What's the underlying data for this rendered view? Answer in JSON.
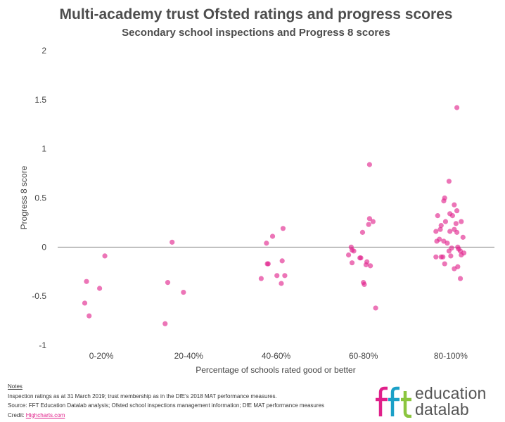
{
  "chart_data": {
    "type": "scatter",
    "title": "Multi-academy trust Ofsted ratings and progress scores",
    "subtitle": "Secondary school inspections and Progress 8 scores",
    "xlabel": "Percentage of schools rated good or better",
    "ylabel": "Progress 8 score",
    "categories": [
      "0-20%",
      "20-40%",
      "40-60%",
      "60-80%",
      "80-100%"
    ],
    "ylim": [
      -1,
      2
    ],
    "yticks": [
      "2",
      "1.5",
      "1",
      "0.5",
      "0",
      "-0.5",
      "-1"
    ],
    "ytick_values": [
      2,
      1.5,
      1,
      0.5,
      0,
      -0.5,
      -1
    ],
    "grid": false,
    "point_color": "#e0208a",
    "points": [
      {
        "category": 0,
        "x": 0.31,
        "y": -0.57
      },
      {
        "category": 0,
        "x": 0.33,
        "y": -0.35
      },
      {
        "category": 0,
        "x": 0.36,
        "y": -0.7
      },
      {
        "category": 0,
        "x": 0.48,
        "y": -0.42
      },
      {
        "category": 0,
        "x": 0.54,
        "y": -0.09
      },
      {
        "category": 1,
        "x": 1.23,
        "y": -0.78
      },
      {
        "category": 1,
        "x": 1.26,
        "y": -0.36
      },
      {
        "category": 1,
        "x": 1.31,
        "y": 0.05
      },
      {
        "category": 1,
        "x": 1.44,
        "y": -0.46
      },
      {
        "category": 2,
        "x": 2.33,
        "y": -0.32
      },
      {
        "category": 2,
        "x": 2.39,
        "y": 0.04
      },
      {
        "category": 2,
        "x": 2.4,
        "y": -0.17
      },
      {
        "category": 2,
        "x": 2.41,
        "y": -0.17
      },
      {
        "category": 2,
        "x": 2.46,
        "y": 0.11
      },
      {
        "category": 2,
        "x": 2.51,
        "y": -0.29
      },
      {
        "category": 2,
        "x": 2.56,
        "y": -0.37
      },
      {
        "category": 2,
        "x": 2.57,
        "y": -0.14
      },
      {
        "category": 2,
        "x": 2.58,
        "y": 0.19
      },
      {
        "category": 2,
        "x": 2.6,
        "y": -0.29
      },
      {
        "category": 3,
        "x": 3.33,
        "y": -0.08
      },
      {
        "category": 3,
        "x": 3.36,
        "y": 0.0
      },
      {
        "category": 3,
        "x": 3.37,
        "y": -0.03
      },
      {
        "category": 3,
        "x": 3.37,
        "y": -0.16
      },
      {
        "category": 3,
        "x": 3.39,
        "y": -0.04
      },
      {
        "category": 3,
        "x": 3.46,
        "y": -0.11
      },
      {
        "category": 3,
        "x": 3.47,
        "y": -0.11
      },
      {
        "category": 3,
        "x": 3.49,
        "y": 0.15
      },
      {
        "category": 3,
        "x": 3.5,
        "y": -0.36
      },
      {
        "category": 3,
        "x": 3.51,
        "y": -0.38
      },
      {
        "category": 3,
        "x": 3.53,
        "y": -0.18
      },
      {
        "category": 3,
        "x": 3.54,
        "y": -0.15
      },
      {
        "category": 3,
        "x": 3.56,
        "y": 0.23
      },
      {
        "category": 3,
        "x": 3.57,
        "y": 0.29
      },
      {
        "category": 3,
        "x": 3.57,
        "y": 0.84
      },
      {
        "category": 3,
        "x": 3.58,
        "y": -0.19
      },
      {
        "category": 3,
        "x": 3.61,
        "y": 0.26
      },
      {
        "category": 3,
        "x": 3.64,
        "y": -0.62
      },
      {
        "category": 4,
        "x": 4.33,
        "y": -0.1
      },
      {
        "category": 4,
        "x": 4.33,
        "y": 0.16
      },
      {
        "category": 4,
        "x": 4.34,
        "y": 0.06
      },
      {
        "category": 4,
        "x": 4.35,
        "y": 0.32
      },
      {
        "category": 4,
        "x": 4.37,
        "y": 0.08
      },
      {
        "category": 4,
        "x": 4.38,
        "y": 0.18
      },
      {
        "category": 4,
        "x": 4.39,
        "y": 0.22
      },
      {
        "category": 4,
        "x": 4.39,
        "y": -0.1
      },
      {
        "category": 4,
        "x": 4.41,
        "y": -0.1
      },
      {
        "category": 4,
        "x": 4.42,
        "y": 0.06
      },
      {
        "category": 4,
        "x": 4.42,
        "y": 0.47
      },
      {
        "category": 4,
        "x": 4.43,
        "y": 0.5
      },
      {
        "category": 4,
        "x": 4.43,
        "y": -0.17
      },
      {
        "category": 4,
        "x": 4.44,
        "y": 0.26
      },
      {
        "category": 4,
        "x": 4.46,
        "y": 0.04
      },
      {
        "category": 4,
        "x": 4.48,
        "y": 0.67
      },
      {
        "category": 4,
        "x": 4.48,
        "y": -0.04
      },
      {
        "category": 4,
        "x": 4.49,
        "y": 0.16
      },
      {
        "category": 4,
        "x": 4.49,
        "y": 0.34
      },
      {
        "category": 4,
        "x": 4.5,
        "y": -0.09
      },
      {
        "category": 4,
        "x": 4.51,
        "y": -0.01
      },
      {
        "category": 4,
        "x": 4.52,
        "y": 0.32
      },
      {
        "category": 4,
        "x": 4.54,
        "y": 0.43
      },
      {
        "category": 4,
        "x": 4.54,
        "y": 0.18
      },
      {
        "category": 4,
        "x": 4.54,
        "y": -0.22
      },
      {
        "category": 4,
        "x": 4.56,
        "y": 0.24
      },
      {
        "category": 4,
        "x": 4.57,
        "y": 0.37
      },
      {
        "category": 4,
        "x": 4.57,
        "y": 1.42
      },
      {
        "category": 4,
        "x": 4.57,
        "y": 0.15
      },
      {
        "category": 4,
        "x": 4.58,
        "y": -0.2
      },
      {
        "category": 4,
        "x": 4.58,
        "y": 0.0
      },
      {
        "category": 4,
        "x": 4.59,
        "y": -0.02
      },
      {
        "category": 4,
        "x": 4.61,
        "y": -0.04
      },
      {
        "category": 4,
        "x": 4.61,
        "y": -0.32
      },
      {
        "category": 4,
        "x": 4.62,
        "y": 0.26
      },
      {
        "category": 4,
        "x": 4.62,
        "y": -0.08
      },
      {
        "category": 4,
        "x": 4.64,
        "y": 0.1
      },
      {
        "category": 4,
        "x": 4.65,
        "y": -0.06
      }
    ]
  },
  "notes": {
    "heading": "Notes",
    "line1": "Inspection ratings as at 31 March 2019; trust membership as in the DfE's 2018 MAT performance measures.",
    "line2": "Source: FFT Education Datalab analysis; Ofsted school inspections management information; DfE MAT performance measures",
    "credit_label": "Credit: ",
    "credit_link": "Highcharts.com"
  },
  "logo": {
    "mark": "fft",
    "line1": "education",
    "line2": "datalab",
    "colors": [
      "#e0208a",
      "#1ba0c7",
      "#8bc53f"
    ]
  }
}
